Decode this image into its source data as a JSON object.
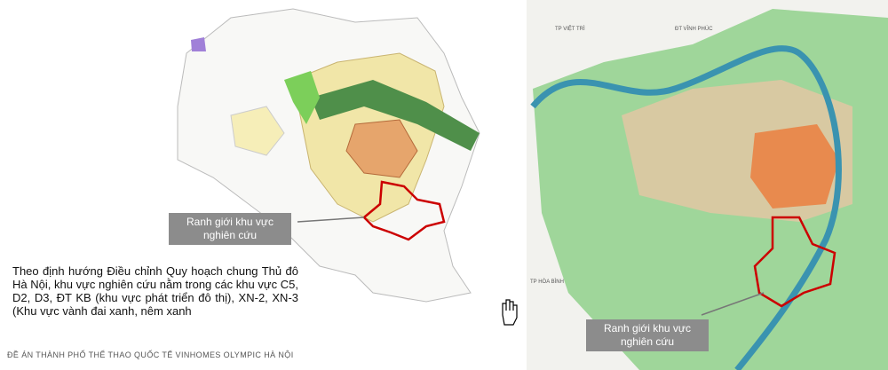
{
  "left_panel": {
    "callout": [
      "Ranh giới khu vực",
      "nghiên cứu"
    ],
    "description": "Theo định hướng Điều chỉnh Quy hoạch chung Thủ đô Hà Nội, khu vực nghiên cứu nằm trong các khu vực C5, D2, D3, ĐT KB (khu vực phát triển đô thị), XN-2, XN-3 (Khu vực vành đai xanh, nêm xanh",
    "footer": "ĐỀ ÁN THÀNH PHỐ THỂ THAO QUỐC TẾ VINHOMES OLYMPIC HÀ NỘI"
  },
  "right_panel": {
    "place_labels": [
      "TP VIỆT TRÌ",
      "ĐT VĨNH PHÚC",
      "TP HÒA BÌNH"
    ],
    "callout": [
      "Ranh giới khu vực",
      "nghiên cứu"
    ]
  }
}
